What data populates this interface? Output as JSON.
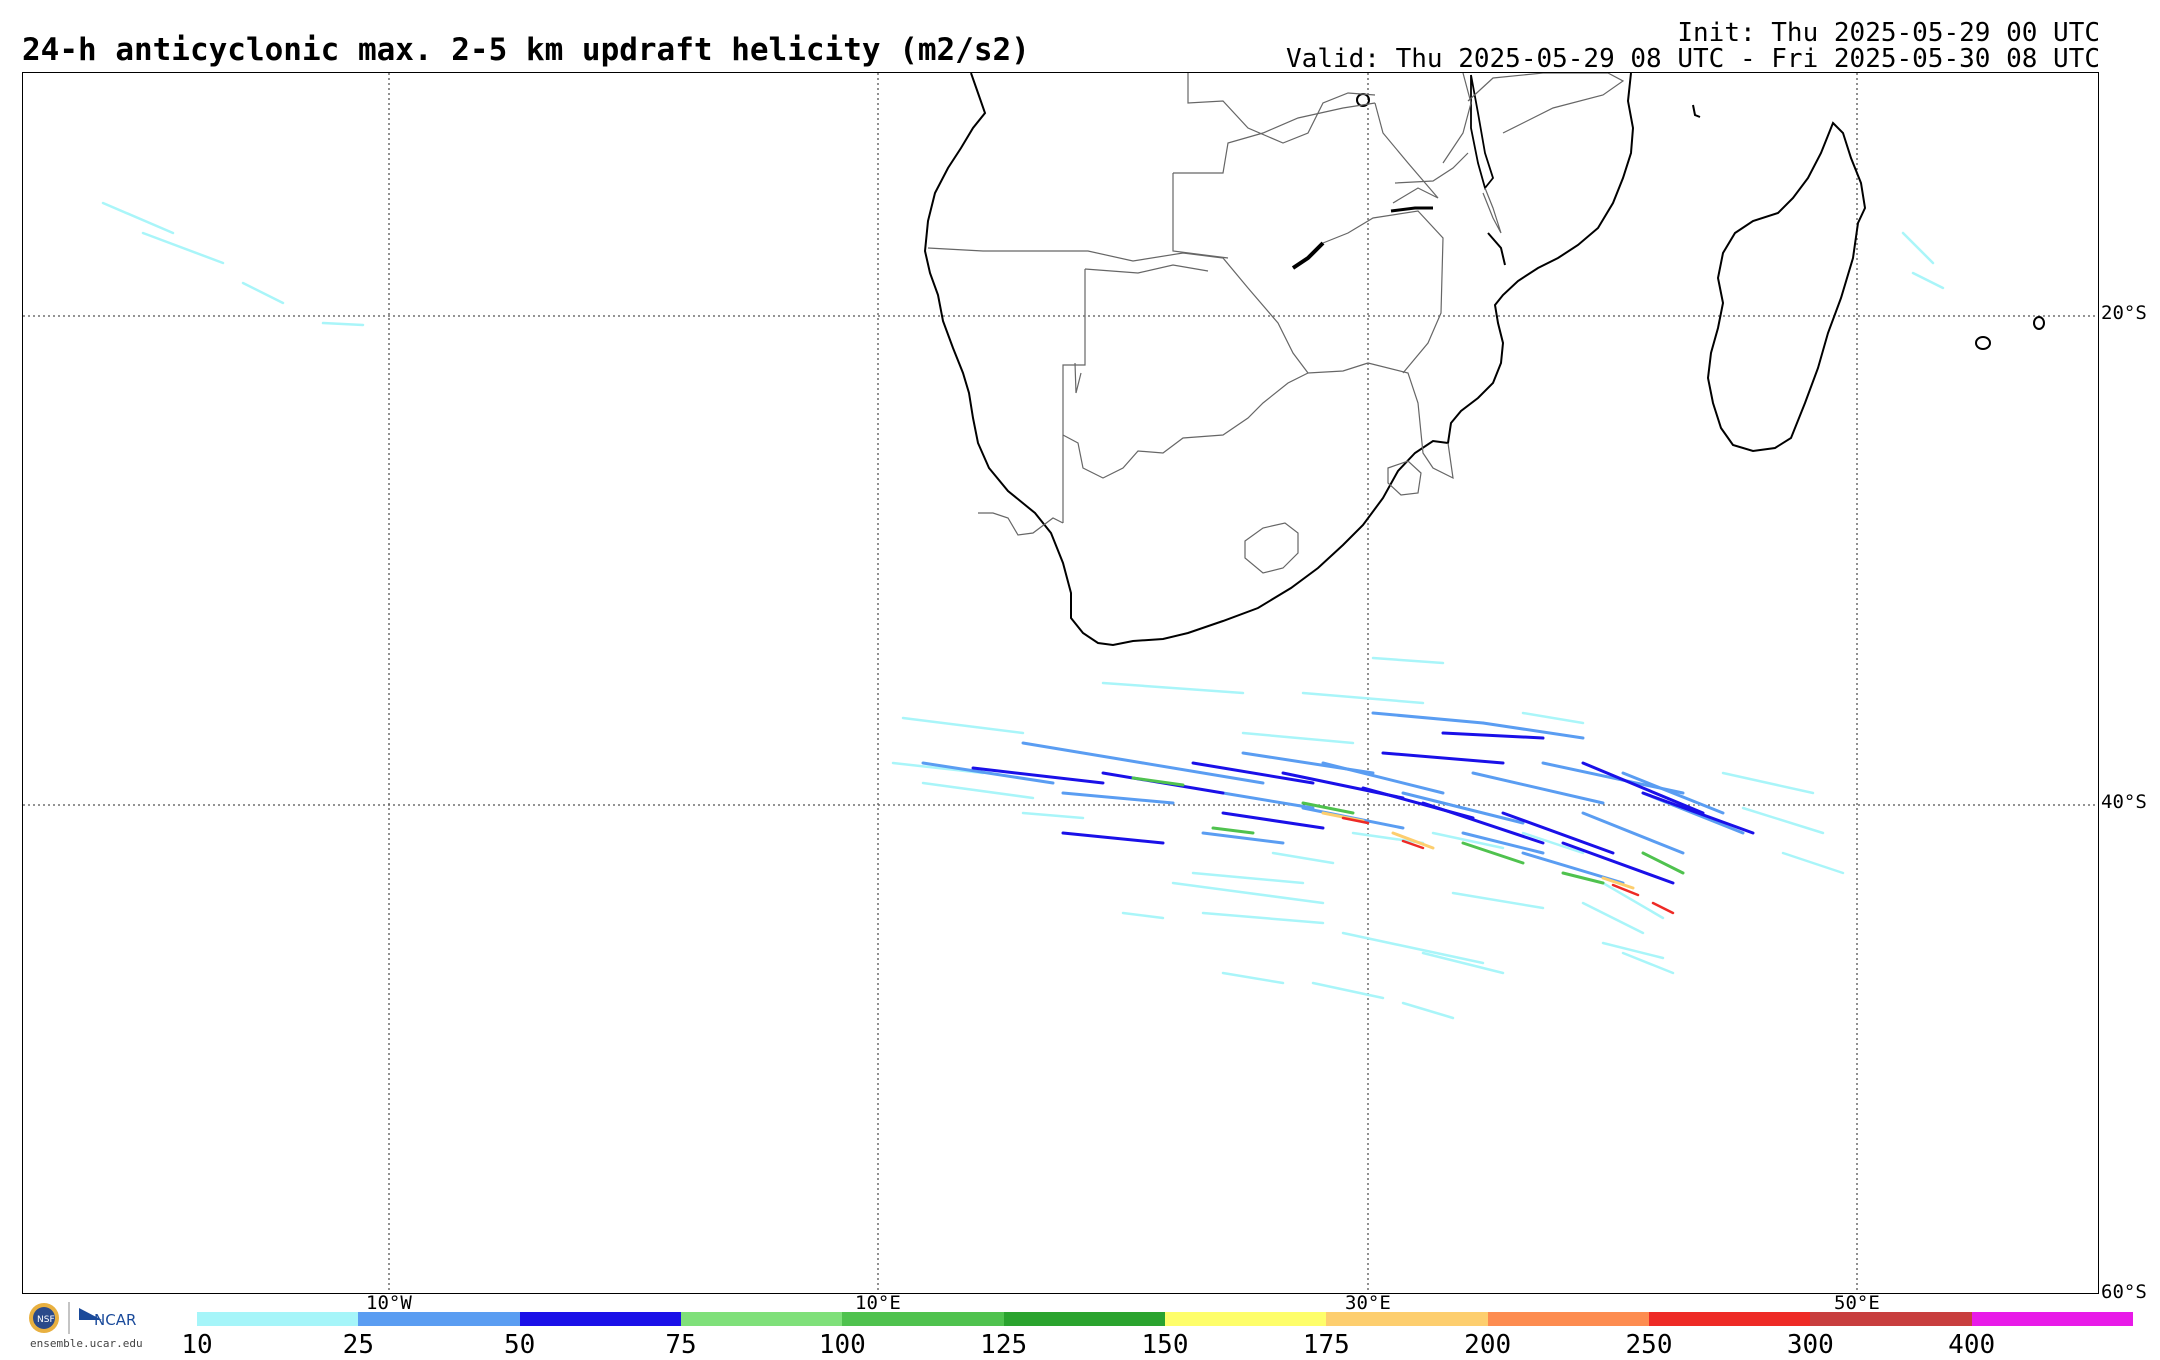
{
  "title": "24-h anticyclonic max. 2-5 km updraft helicity (m2/s2)",
  "init": "Init: Thu 2025-05-29 00 UTC",
  "valid": "Valid: Thu 2025-05-29 08 UTC - Fri 2025-05-30 08 UTC",
  "lat_labels": [
    "20°S",
    "40°S",
    "60°S"
  ],
  "lon_labels": [
    "10°W",
    "10°E",
    "30°E",
    "50°E"
  ],
  "colorbar": {
    "ticks": [
      "10",
      "25",
      "50",
      "75",
      "100",
      "125",
      "150",
      "175",
      "200",
      "250",
      "300",
      "400"
    ],
    "colors": [
      "#a5f5f9",
      "#5a9df2",
      "#1a10e8",
      "#7fe07a",
      "#4fc24e",
      "#2aa32e",
      "#fefe6a",
      "#fdce6e",
      "#fd8c50",
      "#ee2a26",
      "#c83e3e",
      "#e81ae8"
    ]
  },
  "logo": {
    "org": "NCAR",
    "site": "ensemble.ucar.edu"
  }
}
